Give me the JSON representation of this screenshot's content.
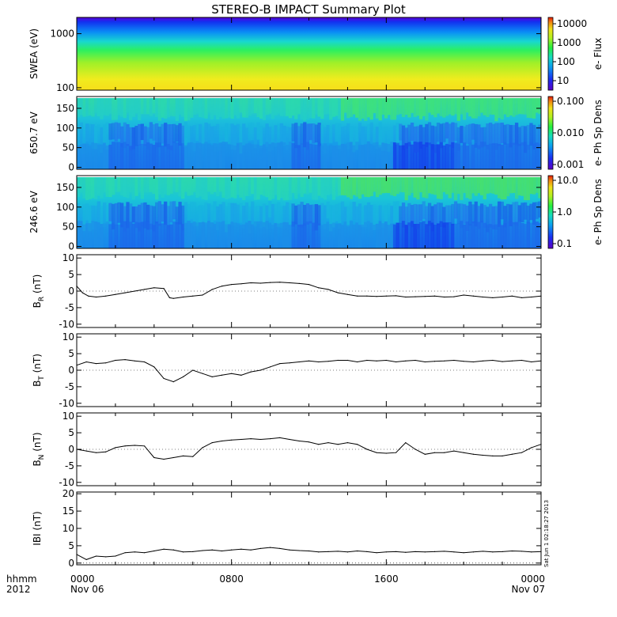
{
  "title": "STEREO-B IMPACT Summary Plot",
  "stamp": "Sat Jun 1 02:18:27 2013",
  "x_axis": {
    "hhmm_label": "hhmm",
    "year_label": "2012",
    "ticks": [
      {
        "hour": 0,
        "time": "0000",
        "date": "Nov 06"
      },
      {
        "hour": 8,
        "time": "0800",
        "date": ""
      },
      {
        "hour": 16,
        "time": "1600",
        "date": ""
      },
      {
        "hour": 24,
        "time": "0000",
        "date": "Nov 07"
      }
    ]
  },
  "colorbars": [
    {
      "label": "e- Flux",
      "ticks": [
        "10000",
        "1000",
        "100",
        "10"
      ]
    },
    {
      "label": "e- Ph Sp Dens",
      "ticks": [
        "0.100",
        "0.010",
        "0.001"
      ]
    },
    {
      "label": "e- Ph Sp Dens",
      "ticks": [
        "10.0",
        "1.0",
        "0.1"
      ]
    }
  ],
  "chart_data": [
    {
      "type": "heatmap",
      "ylabel": "SWEA (eV)",
      "yscale": "log",
      "ylim": [
        90,
        2000
      ],
      "yticks": [
        {
          "value": 1000,
          "label": "1000"
        },
        {
          "value": 100,
          "label": "100"
        }
      ],
      "zlim": [
        1,
        20000
      ],
      "zscale": "log",
      "description_values": {
        "flux_at_100eV": 3000,
        "flux_at_1000eV": 40,
        "flux_at_2000eV": 2
      }
    },
    {
      "type": "heatmap",
      "ylabel": "650.7 eV",
      "ylim": [
        -5,
        180
      ],
      "yticks": [
        {
          "value": 150,
          "label": "150"
        },
        {
          "value": 100,
          "label": "100"
        },
        {
          "value": 50,
          "label": "50"
        },
        {
          "value": 0,
          "label": "0"
        }
      ],
      "zlim": [
        0.001,
        0.1
      ],
      "zscale": "log"
    },
    {
      "type": "heatmap",
      "ylabel": "246.6 eV",
      "ylim": [
        -5,
        180
      ],
      "yticks": [
        {
          "value": 150,
          "label": "150"
        },
        {
          "value": 100,
          "label": "100"
        },
        {
          "value": 50,
          "label": "50"
        },
        {
          "value": 0,
          "label": "0"
        }
      ],
      "zlim": [
        0.1,
        10
      ],
      "zscale": "log"
    },
    {
      "type": "line",
      "ylabel": "B",
      "ylabel_sub": "R",
      "ylabel_unit": " (nT)",
      "ylim": [
        -11,
        11
      ],
      "yticks": [
        {
          "value": 10,
          "label": "10"
        },
        {
          "value": 5,
          "label": "5"
        },
        {
          "value": 0,
          "label": "0"
        },
        {
          "value": -5,
          "label": "-5"
        },
        {
          "value": -10,
          "label": "-10"
        }
      ],
      "x": [
        0,
        0.3,
        0.6,
        1,
        1.5,
        2,
        2.5,
        3,
        3.5,
        4,
        4.5,
        4.8,
        5,
        5.5,
        6,
        6.5,
        7,
        7.5,
        8,
        8.5,
        9,
        9.5,
        10,
        10.5,
        11,
        11.5,
        12,
        12.5,
        13,
        13.5,
        14,
        14.5,
        15,
        15.5,
        16,
        16.5,
        17,
        17.5,
        18,
        18.5,
        19,
        19.5,
        20,
        20.5,
        21,
        21.5,
        22,
        22.5,
        23,
        23.5,
        24
      ],
      "values": [
        1.5,
        -0.5,
        -1.5,
        -1.8,
        -1.5,
        -1,
        -0.5,
        0,
        0.5,
        1,
        0.8,
        -2,
        -2.2,
        -1.8,
        -1.5,
        -1.2,
        0.5,
        1.5,
        2,
        2.2,
        2.5,
        2.4,
        2.6,
        2.7,
        2.5,
        2.3,
        2,
        1,
        0.5,
        -0.5,
        -1,
        -1.5,
        -1.5,
        -1.6,
        -1.5,
        -1.4,
        -1.8,
        -1.7,
        -1.6,
        -1.5,
        -1.8,
        -1.7,
        -1.2,
        -1.5,
        -1.8,
        -2,
        -1.8,
        -1.5,
        -2,
        -1.8,
        -1.5
      ]
    },
    {
      "type": "line",
      "ylabel": "B",
      "ylabel_sub": "T",
      "ylabel_unit": " (nT)",
      "ylim": [
        -11,
        11
      ],
      "yticks": [
        {
          "value": 10,
          "label": "10"
        },
        {
          "value": 5,
          "label": "5"
        },
        {
          "value": 0,
          "label": "0"
        },
        {
          "value": -5,
          "label": "-5"
        },
        {
          "value": -10,
          "label": "-10"
        }
      ],
      "x": [
        0,
        0.5,
        1,
        1.5,
        2,
        2.5,
        3,
        3.5,
        4,
        4.5,
        5,
        5.5,
        6,
        6.5,
        7,
        7.5,
        8,
        8.5,
        9,
        9.5,
        10,
        10.5,
        11,
        11.5,
        12,
        12.5,
        13,
        13.5,
        14,
        14.5,
        15,
        15.5,
        16,
        16.5,
        17,
        17.5,
        18,
        18.5,
        19,
        19.5,
        20,
        20.5,
        21,
        21.5,
        22,
        22.5,
        23,
        23.5,
        24
      ],
      "values": [
        1.5,
        2.5,
        2,
        2.2,
        3,
        3.2,
        2.8,
        2.5,
        1,
        -2.5,
        -3.5,
        -2,
        0,
        -1,
        -2,
        -1.5,
        -1,
        -1.5,
        -0.5,
        0,
        1,
        2,
        2.2,
        2.5,
        2.8,
        2.5,
        2.7,
        3,
        3,
        2.5,
        3,
        2.8,
        3,
        2.5,
        2.8,
        3,
        2.5,
        2.7,
        2.8,
        3,
        2.7,
        2.5,
        2.8,
        3,
        2.6,
        2.8,
        3,
        2.5,
        2.8
      ]
    },
    {
      "type": "line",
      "ylabel": "B",
      "ylabel_sub": "N",
      "ylabel_unit": " (nT)",
      "ylim": [
        -11,
        11
      ],
      "yticks": [
        {
          "value": 10,
          "label": "10"
        },
        {
          "value": 5,
          "label": "5"
        },
        {
          "value": 0,
          "label": "0"
        },
        {
          "value": -5,
          "label": "-5"
        },
        {
          "value": -10,
          "label": "-10"
        }
      ],
      "x": [
        0,
        0.5,
        1,
        1.5,
        2,
        2.5,
        3,
        3.5,
        4,
        4.5,
        5,
        5.5,
        6,
        6.5,
        7,
        7.5,
        8,
        8.5,
        9,
        9.5,
        10,
        10.5,
        11,
        11.5,
        12,
        12.5,
        13,
        13.5,
        14,
        14.5,
        15,
        15.5,
        16,
        16.5,
        17,
        17.5,
        18,
        18.5,
        19,
        19.5,
        20,
        20.5,
        21,
        21.5,
        22,
        22.5,
        23,
        23.5,
        24
      ],
      "values": [
        0,
        -0.5,
        -1,
        -0.8,
        0.5,
        1,
        1.2,
        1,
        -2.5,
        -3,
        -2.5,
        -2,
        -2.2,
        0.5,
        2,
        2.5,
        2.8,
        3,
        3.2,
        3,
        3.2,
        3.5,
        3,
        2.5,
        2.2,
        1.5,
        2,
        1.5,
        2,
        1.5,
        0,
        -1,
        -1.2,
        -1,
        2,
        0,
        -1.5,
        -1,
        -1,
        -0.5,
        -1,
        -1.5,
        -1.8,
        -2,
        -2,
        -1.5,
        -1,
        0.5,
        1.5
      ]
    },
    {
      "type": "line",
      "ylabel": "IBI (nT)",
      "ylim": [
        -0.5,
        20.5
      ],
      "yticks": [
        {
          "value": 20,
          "label": "20"
        },
        {
          "value": 15,
          "label": "15"
        },
        {
          "value": 10,
          "label": "10"
        },
        {
          "value": 5,
          "label": "5"
        },
        {
          "value": 0,
          "label": "0"
        }
      ],
      "x": [
        0,
        0.5,
        1,
        1.5,
        2,
        2.5,
        3,
        3.5,
        4,
        4.5,
        5,
        5.5,
        6,
        6.5,
        7,
        7.5,
        8,
        8.5,
        9,
        9.5,
        10,
        10.5,
        11,
        11.5,
        12,
        12.5,
        13,
        13.5,
        14,
        14.5,
        15,
        15.5,
        16,
        16.5,
        17,
        17.5,
        18,
        18.5,
        19,
        19.5,
        20,
        20.5,
        21,
        21.5,
        22,
        22.5,
        23,
        23.5,
        24
      ],
      "values": [
        2.5,
        1,
        2,
        1.8,
        2,
        3,
        3.2,
        3,
        3.5,
        4,
        3.8,
        3.2,
        3.3,
        3.6,
        3.8,
        3.5,
        3.8,
        4,
        3.8,
        4.2,
        4.5,
        4.2,
        3.8,
        3.6,
        3.5,
        3.2,
        3.3,
        3.4,
        3.2,
        3.5,
        3.3,
        3,
        3.2,
        3.3,
        3.1,
        3.3,
        3.2,
        3.3,
        3.4,
        3.2,
        3,
        3.2,
        3.4,
        3.2,
        3.3,
        3.5,
        3.4,
        3.2,
        3.3
      ]
    }
  ]
}
